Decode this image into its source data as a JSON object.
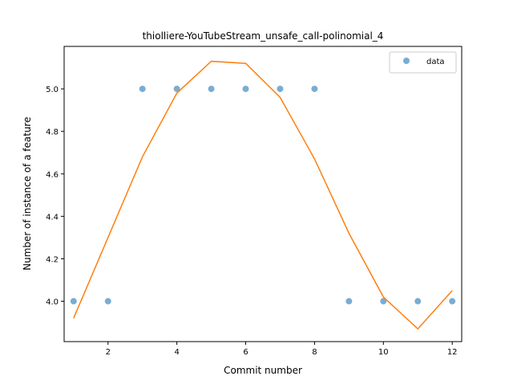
{
  "chart_data": {
    "type": "scatter",
    "title": "thiolliere-YouTubeStream_unsafe_call-polinomial_4",
    "xlabel": "Commit number",
    "ylabel": "Number of instance of a feature",
    "xlim": [
      0.725,
      12.275
    ],
    "ylim": [
      3.81,
      5.2
    ],
    "xticks": [
      2,
      4,
      6,
      8,
      10,
      12
    ],
    "yticks": [
      4.0,
      4.2,
      4.4,
      4.6,
      4.8,
      5.0
    ],
    "xtick_labels": [
      "2",
      "4",
      "6",
      "8",
      "10",
      "12"
    ],
    "ytick_labels": [
      "4.0",
      "4.2",
      "4.4",
      "4.6",
      "4.8",
      "5.0"
    ],
    "legend_position": "top-right",
    "grid": false,
    "series": [
      {
        "name": "data",
        "kind": "scatter",
        "color": "#1f77b4",
        "x": [
          1,
          2,
          3,
          4,
          5,
          6,
          7,
          8,
          9,
          10,
          11,
          12
        ],
        "y": [
          4,
          4,
          5,
          5,
          5,
          5,
          5,
          5,
          4,
          4,
          4,
          4
        ]
      },
      {
        "kind": "line",
        "color": "#ff7f0e",
        "x": [
          1,
          2,
          3,
          4,
          5,
          6,
          7,
          8,
          9,
          10,
          11,
          12
        ],
        "y": [
          3.92,
          4.3,
          4.68,
          4.98,
          5.13,
          5.12,
          4.96,
          4.67,
          4.32,
          4.02,
          3.87,
          4.05
        ]
      }
    ]
  }
}
